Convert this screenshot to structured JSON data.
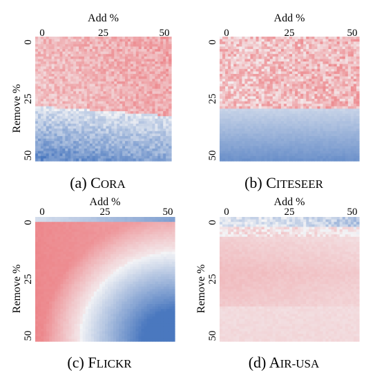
{
  "chart_data": [
    {
      "type": "heatmap",
      "caption_prefix": "(a) ",
      "caption_initial": "C",
      "caption_rest": "ORA",
      "xlabel": "Add %",
      "ylabel": "Remove %",
      "xticks": [
        "0",
        "25",
        "50"
      ],
      "yticks": [
        "0",
        "25",
        "50"
      ],
      "xlim": [
        0,
        50
      ],
      "ylim": [
        0,
        50
      ],
      "pattern": "cora",
      "colors": {
        "positive": "#e8474d",
        "neutral": "#f4f4f6",
        "negative": "#4a78bf"
      }
    },
    {
      "type": "heatmap",
      "caption_prefix": "(b) ",
      "caption_initial": "C",
      "caption_rest": "ITESEER",
      "xlabel": "Add %",
      "ylabel": "",
      "xticks": [
        "0",
        "25",
        "50"
      ],
      "yticks": [
        "0",
        "25",
        "50"
      ],
      "xlim": [
        0,
        50
      ],
      "ylim": [
        0,
        50
      ],
      "pattern": "citeseer",
      "colors": {
        "positive": "#e8474d",
        "neutral": "#f4f4f6",
        "negative": "#4a78bf"
      }
    },
    {
      "type": "heatmap",
      "caption_prefix": "(c) ",
      "caption_initial": "F",
      "caption_rest": "LICKR",
      "xlabel": "Add %",
      "ylabel": "Remove %",
      "xticks": [
        "0",
        "25",
        "50"
      ],
      "yticks": [
        "0",
        "25",
        "50"
      ],
      "xlim": [
        0,
        50
      ],
      "ylim": [
        0,
        50
      ],
      "pattern": "flickr",
      "colors": {
        "positive": "#e8474d",
        "neutral": "#f4f4f6",
        "negative": "#4a78bf"
      }
    },
    {
      "type": "heatmap",
      "caption_prefix": "(d) ",
      "caption_initial": "A",
      "caption_rest": "IR-USA",
      "xlabel": "Add %",
      "ylabel": "Remove %",
      "xticks": [
        "0",
        "25",
        "50"
      ],
      "yticks": [
        "0",
        "25",
        "50"
      ],
      "xlim": [
        0,
        50
      ],
      "ylim": [
        0,
        50
      ],
      "pattern": "airusa",
      "colors": {
        "positive": "#e8474d",
        "neutral": "#f4f4f6",
        "negative": "#4a78bf"
      }
    }
  ]
}
